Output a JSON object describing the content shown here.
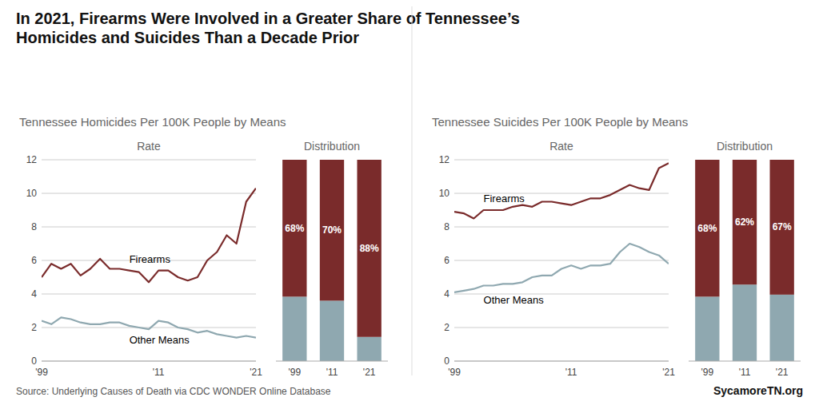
{
  "title": "In 2021, Firearms Were Involved in a Greater Share of Tennessee’s\nHomicides and Suicides Than a Decade Prior",
  "source": "Source: Underlying Causes of Death via CDC WONDER Online Database",
  "credit": "SycamoreTN.org",
  "chart_data": [
    {
      "type": "line",
      "title": "Rate",
      "subtitle": "Tennessee Homicides Per 100K People by Means",
      "x": [
        1999,
        2000,
        2001,
        2002,
        2003,
        2004,
        2005,
        2006,
        2007,
        2008,
        2009,
        2010,
        2011,
        2012,
        2013,
        2014,
        2015,
        2016,
        2017,
        2018,
        2019,
        2020,
        2021
      ],
      "xlim": [
        1999,
        2021
      ],
      "xticks": [
        {
          "value": 1999,
          "label": "'99"
        },
        {
          "value": 2011,
          "label": "'11"
        },
        {
          "value": 2021,
          "label": "'21"
        }
      ],
      "ylim": [
        0,
        12
      ],
      "yticks": [
        0,
        2,
        4,
        6,
        8,
        10,
        12
      ],
      "grid": true,
      "series": [
        {
          "name": "Firearms",
          "color": "#7a2b2b",
          "values": [
            5.0,
            5.8,
            5.5,
            5.8,
            5.1,
            5.5,
            6.1,
            5.5,
            5.5,
            5.4,
            5.3,
            4.7,
            5.4,
            5.4,
            5.0,
            4.8,
            5.0,
            6.0,
            6.5,
            7.5,
            7.0,
            9.5,
            10.3
          ]
        },
        {
          "name": "Other Means",
          "color": "#8fa8b0",
          "values": [
            2.4,
            2.2,
            2.6,
            2.5,
            2.3,
            2.2,
            2.2,
            2.3,
            2.3,
            2.1,
            2.0,
            1.9,
            2.4,
            2.3,
            2.0,
            1.9,
            1.7,
            1.8,
            1.6,
            1.5,
            1.4,
            1.5,
            1.4
          ]
        }
      ]
    },
    {
      "type": "bar",
      "title": "Distribution",
      "stacked": true,
      "tick_labels": "x",
      "categories": [
        "'99",
        "'11",
        "'21"
      ],
      "ylim": [
        0,
        100
      ],
      "series": [
        {
          "color": "#8fa8b0",
          "values": [
            32,
            30,
            12
          ]
        },
        {
          "color": "#7a2b2b",
          "values": [
            68,
            70,
            88
          ],
          "data_labels": true,
          "value_labels": [
            "68%",
            "70%",
            "88%"
          ]
        }
      ]
    },
    {
      "type": "line",
      "title": "Rate",
      "subtitle": "Tennessee Suicides Per 100K People by Means",
      "x": [
        1999,
        2000,
        2001,
        2002,
        2003,
        2004,
        2005,
        2006,
        2007,
        2008,
        2009,
        2010,
        2011,
        2012,
        2013,
        2014,
        2015,
        2016,
        2017,
        2018,
        2019,
        2020,
        2021
      ],
      "xlim": [
        1999,
        2021
      ],
      "xticks": [
        {
          "value": 1999,
          "label": "'99"
        },
        {
          "value": 2011,
          "label": "'11"
        },
        {
          "value": 2021,
          "label": "'21"
        }
      ],
      "ylim": [
        0,
        12
      ],
      "yticks": [
        0,
        2,
        4,
        6,
        8,
        10,
        12
      ],
      "grid": true,
      "series": [
        {
          "name": "Firearms",
          "color": "#7a2b2b",
          "values": [
            8.9,
            8.8,
            8.5,
            9.0,
            9.0,
            9.0,
            9.2,
            9.3,
            9.2,
            9.5,
            9.5,
            9.4,
            9.3,
            9.5,
            9.7,
            9.7,
            9.9,
            10.2,
            10.5,
            10.3,
            10.2,
            11.5,
            11.8
          ]
        },
        {
          "name": "Other Means",
          "color": "#8fa8b0",
          "values": [
            4.1,
            4.2,
            4.3,
            4.5,
            4.5,
            4.6,
            4.6,
            4.7,
            5.0,
            5.1,
            5.1,
            5.5,
            5.7,
            5.5,
            5.7,
            5.7,
            5.8,
            6.5,
            7.0,
            6.8,
            6.5,
            6.3,
            5.8
          ]
        }
      ]
    },
    {
      "type": "bar",
      "title": "Distribution",
      "stacked": true,
      "tick_labels": "x",
      "categories": [
        "'99",
        "'11",
        "'21"
      ],
      "ylim": [
        0,
        100
      ],
      "series": [
        {
          "color": "#8fa8b0",
          "values": [
            32,
            38,
            33
          ]
        },
        {
          "color": "#7a2b2b",
          "values": [
            68,
            62,
            67
          ],
          "data_labels": true,
          "value_labels": [
            "68%",
            "62%",
            "67%"
          ]
        }
      ]
    }
  ]
}
